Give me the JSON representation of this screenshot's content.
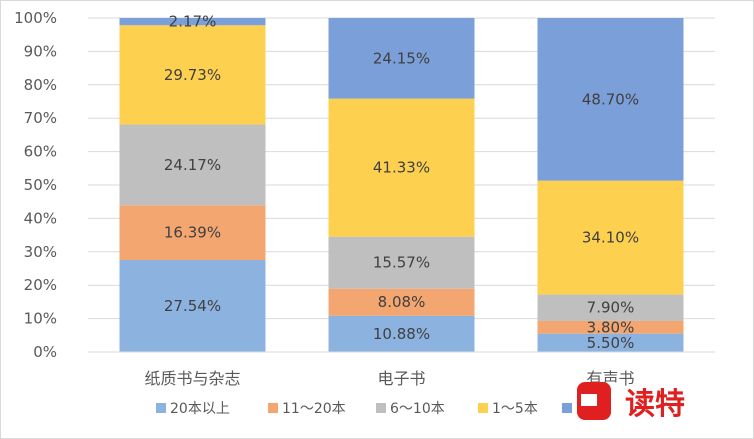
{
  "chart_data": {
    "type": "bar",
    "stacked": true,
    "categories": [
      "纸质书与杂志",
      "电子书",
      "有声书"
    ],
    "series": [
      {
        "name": "20本以上",
        "color": "#8cb3e0",
        "values": [
          27.54,
          10.88,
          5.5
        ]
      },
      {
        "name": "11～20本",
        "color": "#f4a670",
        "values": [
          16.39,
          8.08,
          3.8
        ]
      },
      {
        "name": "6～10本",
        "color": "#bfbfbf",
        "values": [
          24.17,
          15.57,
          7.9
        ]
      },
      {
        "name": "1～5本",
        "color": "#fdd14f",
        "values": [
          29.73,
          41.33,
          34.1
        ]
      },
      {
        "name": "0本",
        "color": "#7b9fd8",
        "values": [
          2.17,
          24.15,
          48.7
        ]
      }
    ],
    "data_labels": [
      [
        "27.54%",
        "10.88%",
        "5.50%"
      ],
      [
        "16.39%",
        "8.08%",
        "3.80%"
      ],
      [
        "24.17%",
        "15.57%",
        "7.90%"
      ],
      [
        "29.73%",
        "41.33%",
        "34.10%"
      ],
      [
        "2.17%",
        "24.15%",
        "48.70%"
      ]
    ],
    "ylim": [
      0,
      100
    ],
    "y_ticks": [
      "0%",
      "10%",
      "20%",
      "30%",
      "40%",
      "50%",
      "60%",
      "70%",
      "80%",
      "90%",
      "100%"
    ],
    "grid": true,
    "legend_position": "bottom"
  },
  "watermark": {
    "text": "读特",
    "color": "#e02020"
  }
}
